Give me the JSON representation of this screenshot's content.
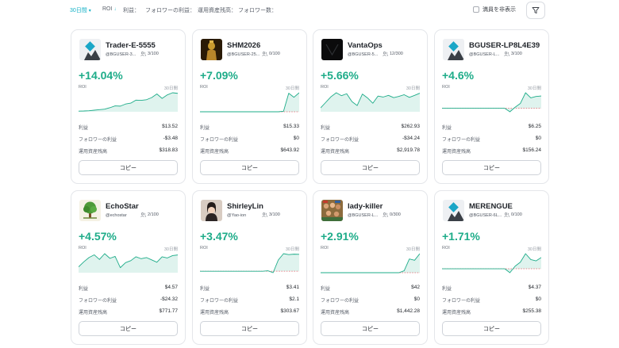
{
  "filters": {
    "period": "30日間",
    "roi": "ROI",
    "profit": "利益：",
    "follower_profit": "フォロワーの利益：",
    "aum": "運用資産残高：",
    "followers": "フォロワー数：",
    "hide_full": "満員を非表示"
  },
  "labels": {
    "roi": "ROI",
    "period": "30日間",
    "profit": "利益",
    "follower_profit": "フォロワーの利益",
    "aum": "運用資産残高",
    "copy": "コピー"
  },
  "colors": {
    "accent": "#14b1c6",
    "positive": "#1eac89",
    "negative": "#f0616d"
  },
  "traders": [
    {
      "name": "Trader-E-5555",
      "handle": "@BGUSER-3...",
      "followers": "3/100",
      "roi": "+14.04%",
      "profit": "$13.52",
      "follower_profit": "-$3.48",
      "aum": "$318.83",
      "avatar": "bitget-logo-icon",
      "roi_series": [
        0.5,
        0.6,
        0.8,
        1.2,
        1.6,
        2.0,
        3.1,
        4.5,
        4.3,
        5.9,
        6.6,
        8.9,
        8.7,
        9.2,
        10.8,
        13.6,
        10.2,
        12.9,
        14.5,
        14.04
      ]
    },
    {
      "name": "SHM2026",
      "handle": "@BGUSER-25...",
      "followers": "0/100",
      "roi": "+7.09%",
      "profit": "$15.33",
      "follower_profit": "$0",
      "aum": "$643.92",
      "avatar": "statue-photo",
      "roi_series": [
        0,
        0,
        0,
        0,
        0,
        0,
        0,
        0,
        0,
        0,
        0,
        0,
        0,
        0,
        0,
        0,
        0.2,
        6.9,
        5.4,
        7.09
      ]
    },
    {
      "name": "VantaOps",
      "handle": "@BGUSER-5...",
      "followers": "12/300",
      "roi": "+5.66%",
      "profit": "$262.93",
      "follower_profit": "-$34.24",
      "aum": "$2,919.78",
      "avatar": "dark-logo",
      "roi_series": [
        1.2,
        2.9,
        4.6,
        5.8,
        4.9,
        5.5,
        3.1,
        1.9,
        5.4,
        4.2,
        2.6,
        4.8,
        4.5,
        5.0,
        4.3,
        4.7,
        5.2,
        4.4,
        5.0,
        5.66
      ]
    },
    {
      "name": "BGUSER-LP8L4E39",
      "handle": "@BGUSER-L...",
      "followers": "3/100",
      "roi": "+4.6%",
      "profit": "$6.25",
      "follower_profit": "$0",
      "aum": "$156.24",
      "avatar": "bitget-logo-icon",
      "roi_series": [
        0,
        0,
        0,
        0,
        0,
        0,
        0,
        0,
        0,
        0,
        0,
        0,
        0,
        -1.3,
        0.4,
        1.8,
        5.8,
        3.9,
        4.4,
        4.6
      ]
    },
    {
      "name": "EchoStar",
      "handle": "@echostar",
      "followers": "2/100",
      "roi": "+4.57%",
      "profit": "$4.57",
      "follower_profit": "-$24.32",
      "aum": "$771.77",
      "avatar": "tree-icon",
      "roi_series": [
        1.5,
        2.8,
        3.9,
        4.6,
        3.4,
        4.9,
        3.7,
        4.2,
        1.3,
        2.6,
        3.1,
        4.1,
        3.6,
        3.9,
        3.3,
        2.7,
        4.1,
        3.8,
        4.4,
        4.57
      ]
    },
    {
      "name": "ShirleyLin",
      "handle": "@Yao-ion",
      "followers": "3/100",
      "roi": "+3.47%",
      "profit": "$3.41",
      "follower_profit": "$2.1",
      "aum": "$303.67",
      "avatar": "portrait-photo",
      "roi_series": [
        0,
        0,
        0,
        0,
        0,
        0,
        0,
        0,
        0,
        0,
        0,
        0,
        0,
        0.1,
        -0.3,
        2.3,
        3.6,
        3.4,
        3.5,
        3.47
      ]
    },
    {
      "name": "lady-killer",
      "handle": "@BGUSER-L...",
      "followers": "0/300",
      "roi": "+2.91%",
      "profit": "$42",
      "follower_profit": "$0",
      "aum": "$1,442.28",
      "avatar": "crowd-photo",
      "roi_series": [
        0,
        0,
        0,
        0,
        0,
        0,
        0,
        0,
        0,
        0,
        0,
        0,
        0,
        0,
        0,
        0,
        0.3,
        2.1,
        1.9,
        2.91
      ]
    },
    {
      "name": "MERENGUE",
      "handle": "@BGUSER-6L...",
      "followers": "0/100",
      "roi": "+1.71%",
      "profit": "$4.37",
      "follower_profit": "$0",
      "aum": "$255.38",
      "avatar": "bitget-logo-icon",
      "roi_series": [
        0,
        0,
        0,
        0,
        0,
        0,
        0,
        0,
        0,
        0,
        0,
        0,
        0,
        -0.6,
        0.4,
        1.0,
        2.3,
        1.4,
        1.2,
        1.71
      ]
    }
  ]
}
